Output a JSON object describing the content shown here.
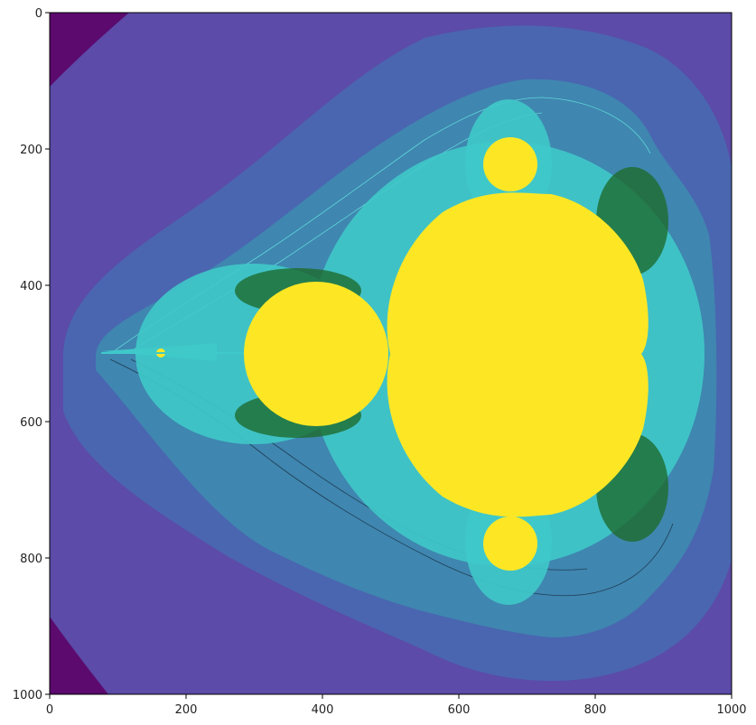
{
  "figure": {
    "image_description": "Mandelbrot set rendered with escape-time coloring (viridis-like palette)",
    "x_ticks": [
      "0",
      "200",
      "400",
      "600",
      "800",
      "1000"
    ],
    "y_ticks": [
      "0",
      "200",
      "400",
      "600",
      "800",
      "1000"
    ]
  },
  "chart_data": {
    "type": "heatmap",
    "title": "",
    "xlabel": "",
    "ylabel": "",
    "xlim": [
      0,
      1000
    ],
    "ylim": [
      1000,
      0
    ],
    "x_ticks": [
      0,
      200,
      400,
      600,
      800,
      1000
    ],
    "y_ticks": [
      0,
      200,
      400,
      600,
      800,
      1000
    ],
    "grid": false,
    "colormap": "viridis",
    "colors": {
      "set_interior": "#fde725",
      "outer_corner": "#5c0a6e",
      "outer_band": "#5c4ba8",
      "middle_band": "#4a68b0",
      "inner_band": "#3f88b0",
      "boundary_cyan": "#3ff0e0",
      "boundary_green": "#1e6b2e"
    }
  }
}
